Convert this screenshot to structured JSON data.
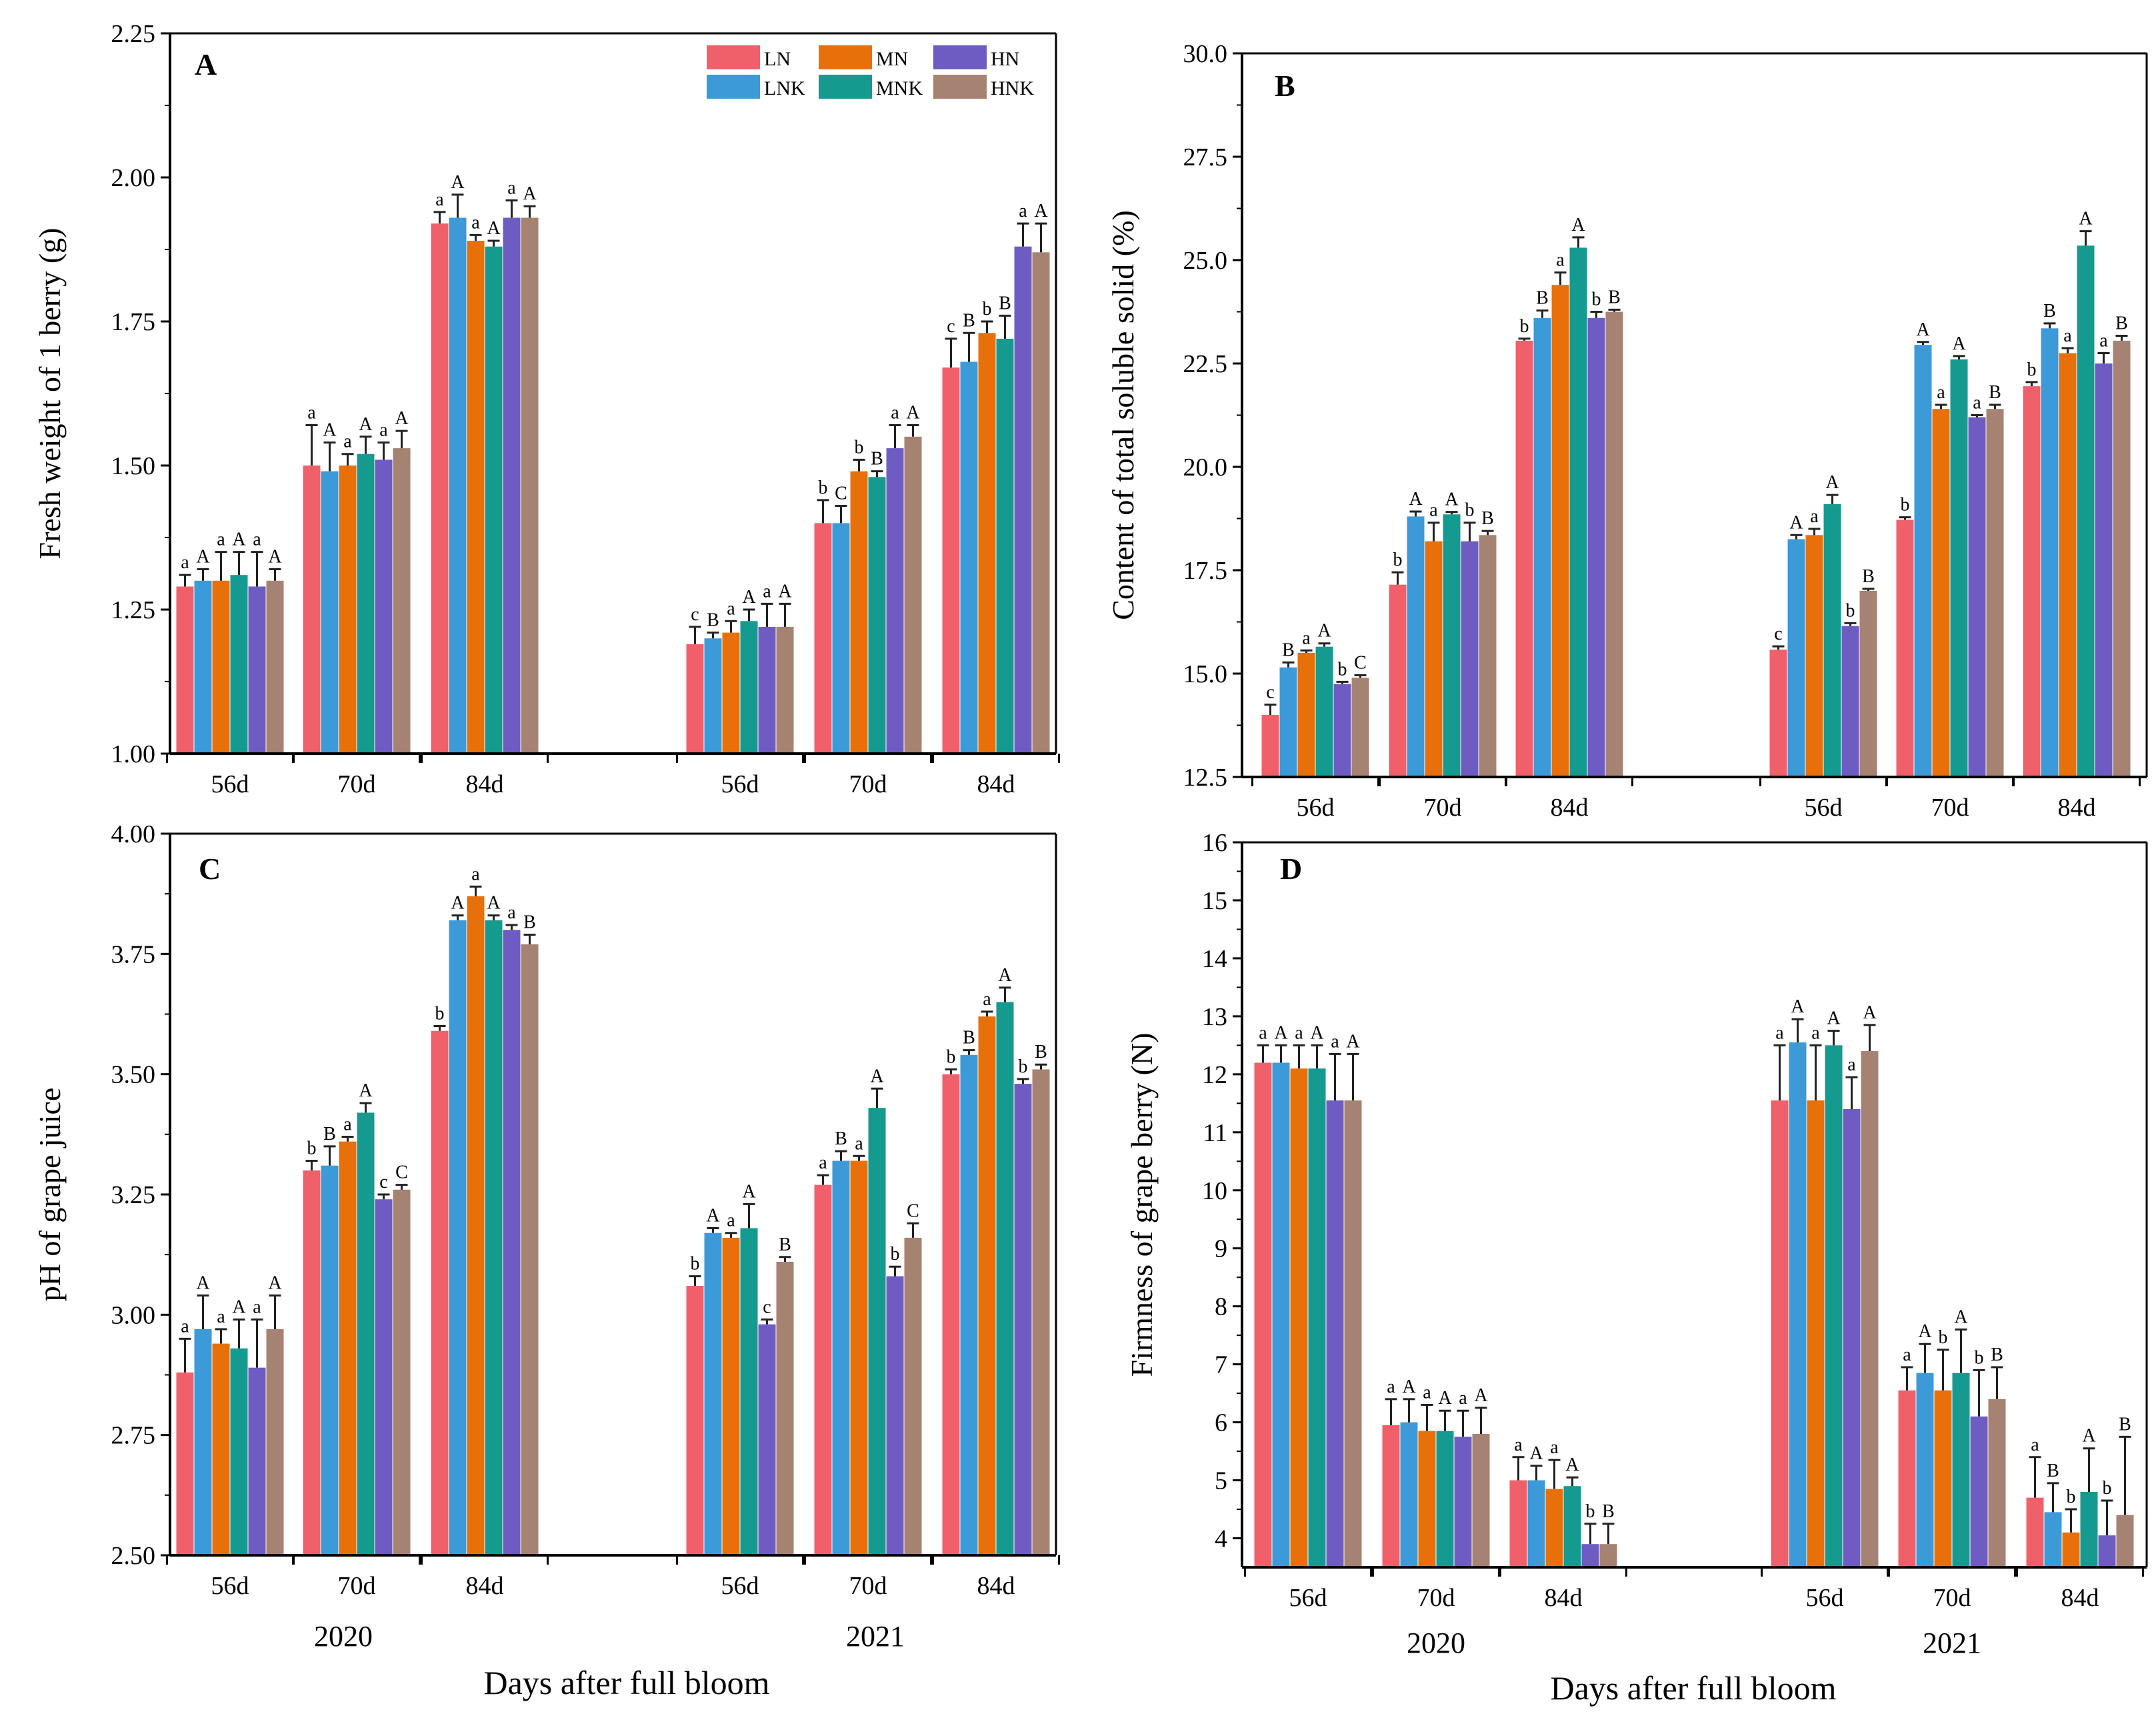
{
  "colors": {
    "LN": "#F0606A",
    "LNK": "#3C9AD8",
    "MN": "#E8700A",
    "MNK": "#159A90",
    "HN": "#6E5CC2",
    "HNK": "#A58272"
  },
  "legend": {
    "entries": [
      {
        "key": "LN",
        "label": "LN"
      },
      {
        "key": "MN",
        "label": "MN"
      },
      {
        "key": "HN",
        "label": "HN"
      },
      {
        "key": "LNK",
        "label": "LNK"
      },
      {
        "key": "MNK",
        "label": "MNK"
      },
      {
        "key": "HNK",
        "label": "HNK"
      }
    ]
  },
  "x_axis_title": "Days after full bloom",
  "years": [
    "2020",
    "2021"
  ],
  "chart_data": [
    {
      "type": "bar",
      "panel": "A",
      "title": "A",
      "ylabel": "Fresh weight of 1 berry (g)",
      "ylim": [
        1.0,
        2.25
      ],
      "yticks": [
        "1.00",
        "1.25",
        "1.50",
        "1.75",
        "2.00",
        "2.25"
      ],
      "categories": [
        "56d",
        "70d",
        "84d",
        "56d",
        "70d",
        "84d"
      ],
      "series": [
        {
          "name": "LN",
          "values": [
            1.29,
            1.5,
            1.92,
            1.19,
            1.4,
            1.67
          ],
          "errors": [
            0.02,
            0.07,
            0.02,
            0.03,
            0.04,
            0.05
          ]
        },
        {
          "name": "LNK",
          "values": [
            1.3,
            1.49,
            1.93,
            1.2,
            1.4,
            1.68
          ],
          "errors": [
            0.02,
            0.05,
            0.04,
            0.01,
            0.03,
            0.05
          ]
        },
        {
          "name": "MN",
          "values": [
            1.3,
            1.5,
            1.89,
            1.21,
            1.49,
            1.73
          ],
          "errors": [
            0.05,
            0.02,
            0.01,
            0.02,
            0.02,
            0.02
          ]
        },
        {
          "name": "MNK",
          "values": [
            1.31,
            1.52,
            1.88,
            1.23,
            1.48,
            1.72
          ],
          "errors": [
            0.04,
            0.03,
            0.01,
            0.02,
            0.01,
            0.04
          ]
        },
        {
          "name": "HN",
          "values": [
            1.29,
            1.51,
            1.93,
            1.22,
            1.53,
            1.88
          ],
          "errors": [
            0.06,
            0.03,
            0.03,
            0.04,
            0.04,
            0.04
          ]
        },
        {
          "name": "HNK",
          "values": [
            1.3,
            1.53,
            1.93,
            1.22,
            1.55,
            1.87
          ],
          "errors": [
            0.02,
            0.03,
            0.02,
            0.04,
            0.02,
            0.05
          ]
        }
      ],
      "sig_labels": [
        [
          "a",
          "a",
          "a",
          "c",
          "b",
          "c"
        ],
        [
          "A",
          "A",
          "A",
          "B",
          "C",
          "B"
        ],
        [
          "a",
          "a",
          "a",
          "a",
          "b",
          "b"
        ],
        [
          "A",
          "A",
          "A",
          "A",
          "B",
          "B"
        ],
        [
          "a",
          "a",
          "a",
          "a",
          "a",
          "a"
        ],
        [
          "A",
          "A",
          "A",
          "A",
          "A",
          "A"
        ]
      ]
    },
    {
      "type": "bar",
      "panel": "B",
      "title": "B",
      "ylabel": "Content of total soluble solid (%)",
      "ylim": [
        12.5,
        30.0
      ],
      "yticks": [
        "12.5",
        "15.0",
        "17.5",
        "20.0",
        "22.5",
        "25.0",
        "27.5",
        "30.0"
      ],
      "categories": [
        "56d",
        "70d",
        "84d",
        "56d",
        "70d",
        "84d"
      ],
      "series": [
        {
          "name": "LN",
          "values": [
            14.0,
            17.15,
            23.05,
            15.58,
            18.72,
            21.95
          ],
          "errors": [
            0.25,
            0.3,
            0.05,
            0.08,
            0.06,
            0.1
          ]
        },
        {
          "name": "LNK",
          "values": [
            15.15,
            18.8,
            23.6,
            18.25,
            22.95,
            23.35
          ],
          "errors": [
            0.12,
            0.12,
            0.18,
            0.1,
            0.07,
            0.12
          ]
        },
        {
          "name": "MN",
          "values": [
            15.5,
            18.2,
            24.4,
            18.35,
            21.4,
            22.75
          ],
          "errors": [
            0.06,
            0.45,
            0.3,
            0.15,
            0.1,
            0.12
          ]
        },
        {
          "name": "MNK",
          "values": [
            15.65,
            18.85,
            25.3,
            19.1,
            22.6,
            25.35
          ],
          "errors": [
            0.08,
            0.06,
            0.25,
            0.22,
            0.08,
            0.35
          ]
        },
        {
          "name": "HN",
          "values": [
            14.75,
            18.2,
            23.6,
            16.15,
            21.2,
            22.5
          ],
          "errors": [
            0.05,
            0.45,
            0.15,
            0.07,
            0.05,
            0.25
          ]
        },
        {
          "name": "HNK",
          "values": [
            14.9,
            18.35,
            23.75,
            17.0,
            21.4,
            23.05
          ],
          "errors": [
            0.06,
            0.1,
            0.05,
            0.05,
            0.1,
            0.12
          ]
        }
      ],
      "sig_labels": [
        [
          "c",
          "b",
          "b",
          "c",
          "b",
          "b"
        ],
        [
          "B",
          "A",
          "B",
          "A",
          "A",
          "B"
        ],
        [
          "a",
          "a",
          "a",
          "a",
          "a",
          "a"
        ],
        [
          "A",
          "A",
          "A",
          "A",
          "A",
          "A"
        ],
        [
          "b",
          "b",
          "b",
          "b",
          "a",
          "a"
        ],
        [
          "C",
          "B",
          "B",
          "B",
          "B",
          "B"
        ]
      ]
    },
    {
      "type": "bar",
      "panel": "C",
      "title": "C",
      "ylabel": "pH of grape juice",
      "ylim": [
        2.5,
        4.0
      ],
      "yticks": [
        "2.50",
        "2.75",
        "3.00",
        "3.25",
        "3.50",
        "3.75",
        "4.00"
      ],
      "categories": [
        "56d",
        "70d",
        "84d",
        "56d",
        "70d",
        "84d"
      ],
      "series": [
        {
          "name": "LN",
          "values": [
            2.88,
            3.3,
            3.59,
            3.06,
            3.27,
            3.5
          ],
          "errors": [
            0.07,
            0.02,
            0.01,
            0.02,
            0.02,
            0.01
          ]
        },
        {
          "name": "LNK",
          "values": [
            2.97,
            3.31,
            3.82,
            3.17,
            3.32,
            3.54
          ],
          "errors": [
            0.07,
            0.04,
            0.01,
            0.01,
            0.02,
            0.01
          ]
        },
        {
          "name": "MN",
          "values": [
            2.94,
            3.36,
            3.87,
            3.16,
            3.32,
            3.62
          ],
          "errors": [
            0.03,
            0.01,
            0.02,
            0.01,
            0.01,
            0.01
          ]
        },
        {
          "name": "MNK",
          "values": [
            2.93,
            3.42,
            3.82,
            3.18,
            3.43,
            3.65
          ],
          "errors": [
            0.06,
            0.02,
            0.01,
            0.05,
            0.04,
            0.03
          ]
        },
        {
          "name": "HN",
          "values": [
            2.89,
            3.24,
            3.8,
            2.98,
            3.08,
            3.48
          ],
          "errors": [
            0.1,
            0.01,
            0.01,
            0.01,
            0.02,
            0.01
          ]
        },
        {
          "name": "HNK",
          "values": [
            2.97,
            3.26,
            3.77,
            3.11,
            3.16,
            3.51
          ],
          "errors": [
            0.07,
            0.01,
            0.02,
            0.01,
            0.03,
            0.01
          ]
        }
      ],
      "sig_labels": [
        [
          "a",
          "b",
          "b",
          "b",
          "a",
          "b"
        ],
        [
          "A",
          "B",
          "A",
          "A",
          "B",
          "B"
        ],
        [
          "a",
          "a",
          "a",
          "a",
          "a",
          "a"
        ],
        [
          "A",
          "A",
          "A",
          "A",
          "A",
          "A"
        ],
        [
          "a",
          "c",
          "a",
          "c",
          "b",
          "b"
        ],
        [
          "A",
          "C",
          "B",
          "B",
          "C",
          "B"
        ]
      ]
    },
    {
      "type": "bar",
      "panel": "D",
      "title": "D",
      "ylabel": "Firmness of grape berry (N)",
      "ylim": [
        3.5,
        16
      ],
      "yticks": [
        "4",
        "5",
        "6",
        "7",
        "8",
        "9",
        "10",
        "11",
        "12",
        "13",
        "14",
        "15",
        "16"
      ],
      "categories": [
        "56d",
        "70d",
        "84d",
        "56d",
        "70d",
        "84d"
      ],
      "series": [
        {
          "name": "LN",
          "values": [
            12.2,
            5.95,
            5.0,
            11.55,
            6.55,
            4.7
          ],
          "errors": [
            0.3,
            0.45,
            0.4,
            0.95,
            0.4,
            0.7
          ]
        },
        {
          "name": "LNK",
          "values": [
            12.2,
            6.0,
            5.0,
            12.55,
            6.85,
            4.45
          ],
          "errors": [
            0.3,
            0.4,
            0.25,
            0.4,
            0.5,
            0.5
          ]
        },
        {
          "name": "MN",
          "values": [
            12.1,
            5.85,
            4.85,
            11.55,
            6.55,
            4.1
          ],
          "errors": [
            0.4,
            0.45,
            0.5,
            0.95,
            0.7,
            0.4
          ]
        },
        {
          "name": "MNK",
          "values": [
            12.1,
            5.85,
            4.9,
            12.5,
            6.85,
            4.8
          ],
          "errors": [
            0.4,
            0.35,
            0.15,
            0.25,
            0.75,
            0.75
          ]
        },
        {
          "name": "HN",
          "values": [
            11.55,
            5.75,
            3.9,
            11.4,
            6.1,
            4.05
          ],
          "errors": [
            0.8,
            0.45,
            0.35,
            0.55,
            0.8,
            0.6
          ]
        },
        {
          "name": "HNK",
          "values": [
            11.55,
            5.8,
            3.9,
            12.4,
            6.4,
            4.4
          ],
          "errors": [
            0.8,
            0.45,
            0.35,
            0.45,
            0.55,
            1.35
          ]
        }
      ],
      "sig_labels": [
        [
          "a",
          "a",
          "a",
          "a",
          "a",
          "a"
        ],
        [
          "A",
          "A",
          "A",
          "A",
          "A",
          "B"
        ],
        [
          "a",
          "a",
          "a",
          "a",
          "b",
          "b"
        ],
        [
          "A",
          "A",
          "A",
          "A",
          "A",
          "A"
        ],
        [
          "a",
          "a",
          "b",
          "a",
          "b",
          "b"
        ],
        [
          "A",
          "A",
          "B",
          "A",
          "B",
          "B"
        ]
      ]
    }
  ]
}
